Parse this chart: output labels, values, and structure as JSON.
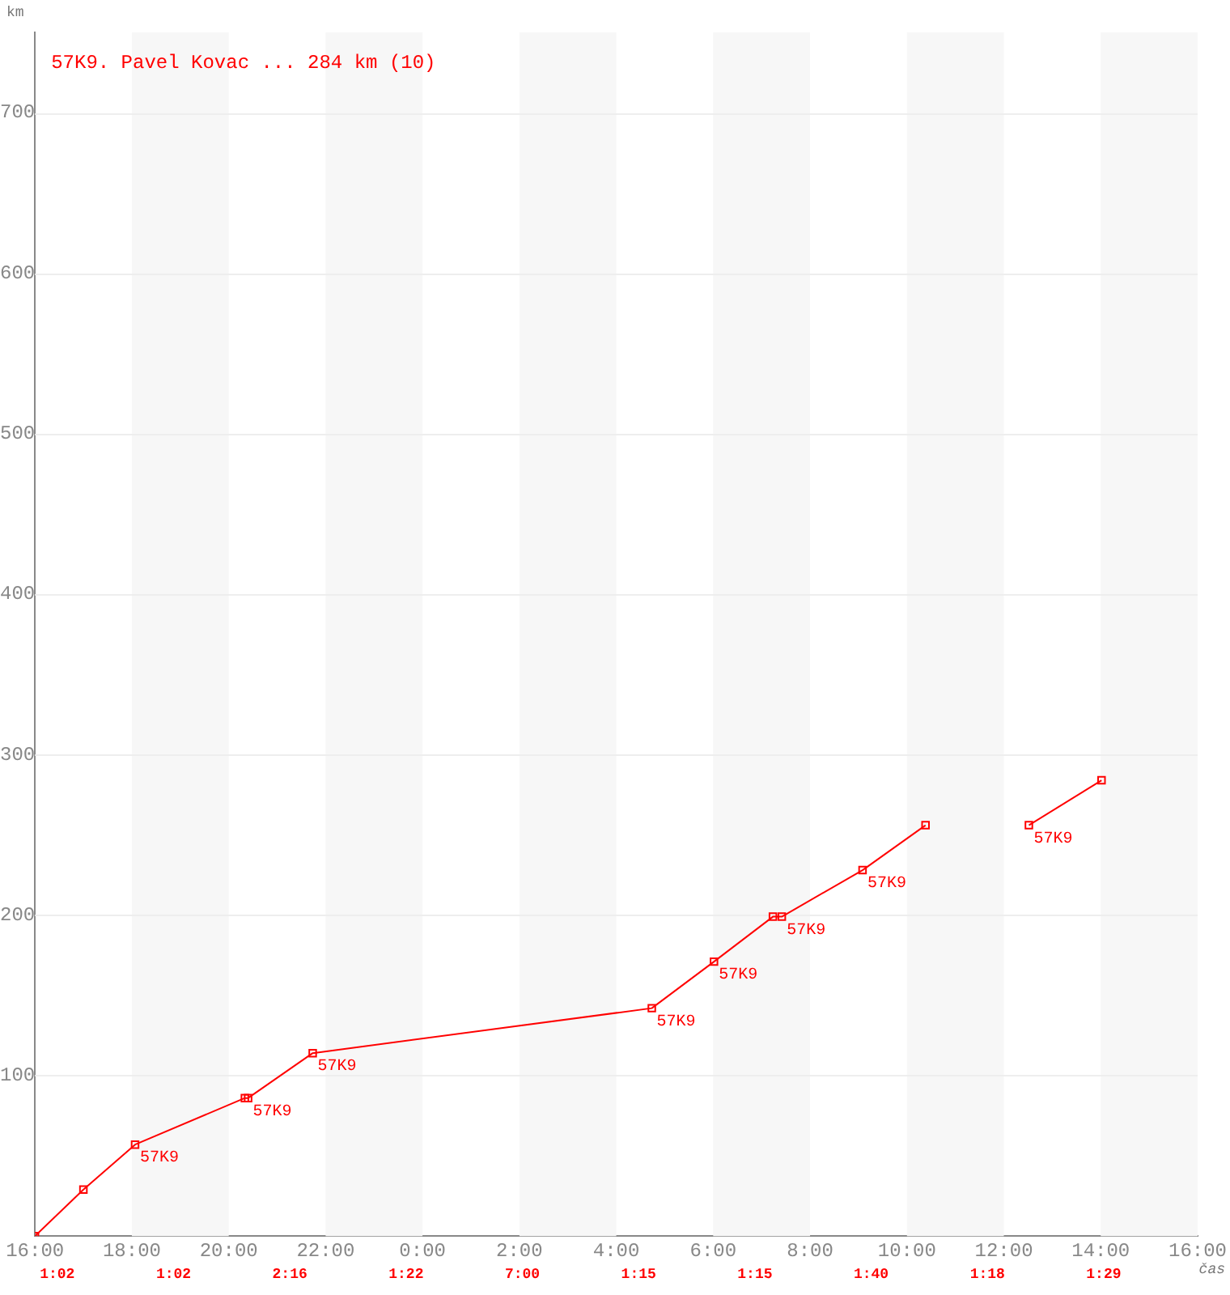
{
  "chart_data": {
    "type": "line",
    "title": "57K9. Pavel Kovac ... 284 km (10)",
    "xlabel": "čas",
    "ylabel": "km",
    "xlim": [
      "2000-01-01T16:00",
      "2000-01-02T16:00"
    ],
    "xticks": [
      {
        "value": "2000-01-01T16:00",
        "label": "16:00"
      },
      {
        "value": "2000-01-01T18:00",
        "label": "18:00"
      },
      {
        "value": "2000-01-01T20:00",
        "label": "20:00"
      },
      {
        "value": "2000-01-01T22:00",
        "label": "22:00"
      },
      {
        "value": "2000-01-02T00:00",
        "label": "0:00"
      },
      {
        "value": "2000-01-02T02:00",
        "label": "2:00"
      },
      {
        "value": "2000-01-02T04:00",
        "label": "4:00"
      },
      {
        "value": "2000-01-02T06:00",
        "label": "6:00"
      },
      {
        "value": "2000-01-02T08:00",
        "label": "8:00"
      },
      {
        "value": "2000-01-02T10:00",
        "label": "10:00"
      },
      {
        "value": "2000-01-02T12:00",
        "label": "12:00"
      },
      {
        "value": "2000-01-02T14:00",
        "label": "14:00"
      },
      {
        "value": "2000-01-02T16:00",
        "label": "16:00"
      }
    ],
    "ylim": [
      0,
      750
    ],
    "yticks": [
      100,
      200,
      300,
      400,
      500,
      600,
      700
    ],
    "series": [
      {
        "color": "#ff0000",
        "x": [
          "2000-01-01T16:00",
          "2000-01-01T17:00",
          "2000-01-01T18:04",
          "2000-01-01T20:20",
          "2000-01-01T20:24",
          "2000-01-01T21:44",
          "2000-01-02T04:44",
          "2000-01-02T06:01",
          "2000-01-02T07:14",
          "2000-01-02T07:25",
          "2000-01-02T09:05",
          "2000-01-02T10:23"
        ],
        "values": [
          0,
          29,
          57,
          86,
          86,
          114,
          142,
          171,
          199,
          199,
          228,
          256
        ]
      },
      {
        "color": "#ff0000",
        "x": [
          "2000-01-02T12:31",
          "2000-01-02T14:01"
        ],
        "values": [
          256,
          284
        ]
      }
    ],
    "bands": [
      {
        "axis": "x",
        "from": "2000-01-01T18:00",
        "to": "2000-01-01T20:00",
        "color": "#f7f7f7"
      },
      {
        "axis": "x",
        "from": "2000-01-01T22:00",
        "to": "2000-01-02T00:00",
        "color": "#f7f7f7"
      },
      {
        "axis": "x",
        "from": "2000-01-02T02:00",
        "to": "2000-01-02T04:00",
        "color": "#f7f7f7"
      },
      {
        "axis": "x",
        "from": "2000-01-02T06:00",
        "to": "2000-01-02T08:00",
        "color": "#f7f7f7"
      },
      {
        "axis": "x",
        "from": "2000-01-02T10:00",
        "to": "2000-01-02T12:00",
        "color": "#f7f7f7"
      },
      {
        "axis": "x",
        "from": "2000-01-02T14:00",
        "to": "2000-01-02T16:00",
        "color": "#f7f7f7"
      }
    ],
    "annotations": [
      {
        "text": "57K9",
        "x": "2000-01-01T18:04",
        "y": 57
      },
      {
        "text": "57K9",
        "x": "2000-01-01T20:24",
        "y": 86
      },
      {
        "text": "57K9",
        "x": "2000-01-01T21:44",
        "y": 114
      },
      {
        "text": "57K9",
        "x": "2000-01-02T04:44",
        "y": 142
      },
      {
        "text": "57K9",
        "x": "2000-01-02T06:01",
        "y": 171
      },
      {
        "text": "57K9",
        "x": "2000-01-02T07:25",
        "y": 199
      },
      {
        "text": "57K9",
        "x": "2000-01-02T09:05",
        "y": 228
      },
      {
        "text": "57K9",
        "x": "2000-01-02T12:31",
        "y": 256
      },
      "1:02",
      "1:02",
      "2:16",
      "1:22",
      "7:00",
      "1:15",
      "1:15",
      "1:40",
      "1:18",
      "1:29"
    ],
    "grid": "y",
    "legend": false,
    "marker": "square",
    "line_style": "solid"
  }
}
